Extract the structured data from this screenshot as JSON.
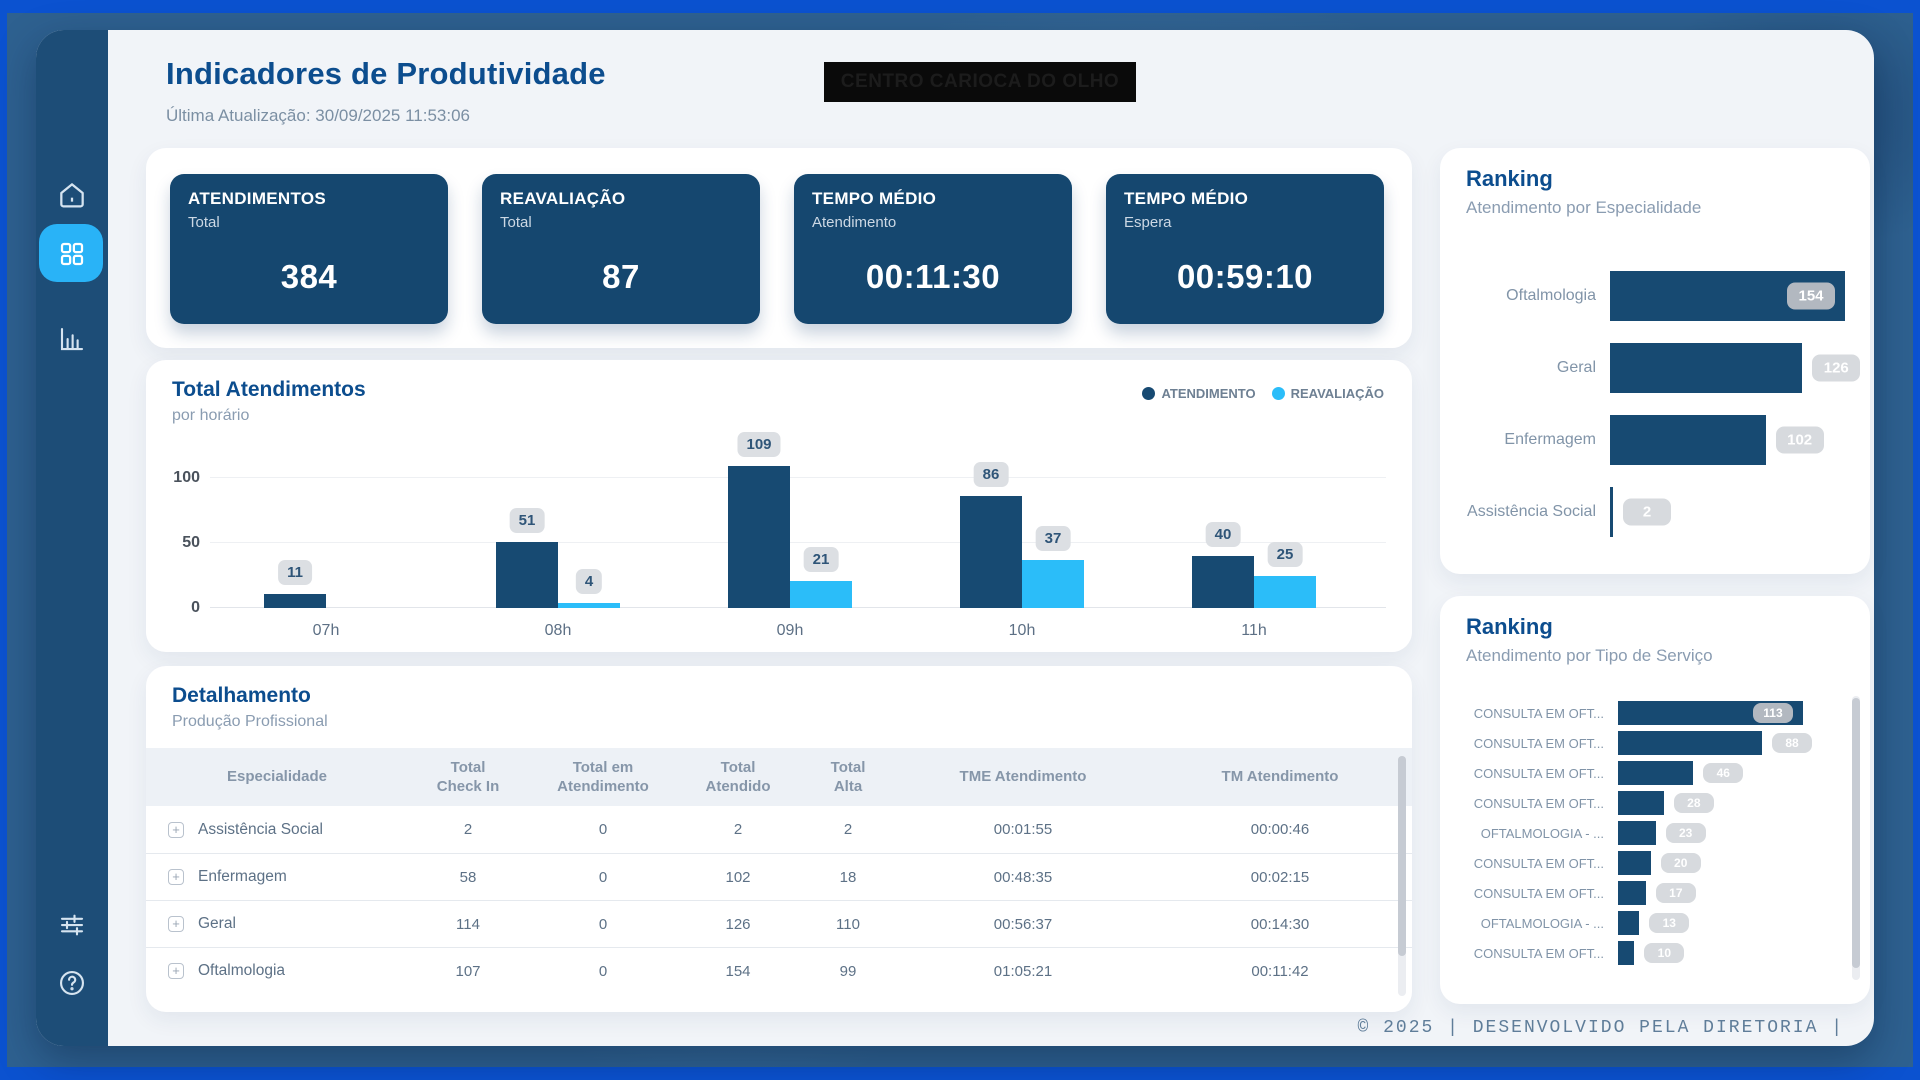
{
  "window": {
    "frame_color": "#0b52d0",
    "background_color": "#2e6190",
    "accent_color": "#29b3f7"
  },
  "sidebar": {
    "items": [
      {
        "id": "home",
        "icon": "home-icon",
        "active": false
      },
      {
        "id": "dashboard",
        "icon": "dashboard-grid-icon",
        "active": true
      },
      {
        "id": "reports",
        "icon": "bar-chart-icon",
        "active": false
      }
    ],
    "bottom_items": [
      {
        "id": "filters",
        "icon": "sliders-icon"
      },
      {
        "id": "help",
        "icon": "help-icon"
      }
    ]
  },
  "header": {
    "title": "Indicadores de Produtividade",
    "last_update": "Última Atualização: 30/09/2025 11:53:06",
    "redacted_text": "CENTRO CARIOCA DO OLHO"
  },
  "kpis": [
    {
      "title": "ATENDIMENTOS",
      "subtitle": "Total",
      "value": "384"
    },
    {
      "title": "REAVALIAÇÃO",
      "subtitle": "Total",
      "value": "87"
    },
    {
      "title": "TEMPO MÉDIO",
      "subtitle": "Atendimento",
      "value": "00:11:30"
    },
    {
      "title": "TEMPO MÉDIO",
      "subtitle": "Espera",
      "value": "00:59:10"
    }
  ],
  "chart_data": [
    {
      "type": "bar",
      "title": "Total Atendimentos",
      "subtitle": "por horário",
      "categories": [
        "07h",
        "08h",
        "09h",
        "10h",
        "11h"
      ],
      "series": [
        {
          "name": "ATENDIMENTO",
          "color": "#174a72",
          "values": [
            11,
            51,
            109,
            86,
            40
          ]
        },
        {
          "name": "REAVALIAÇÃO",
          "color": "#2bbdf9",
          "values": [
            0,
            4,
            21,
            37,
            25
          ]
        }
      ],
      "ylim": [
        0,
        130
      ],
      "yticks": [
        0,
        50,
        100
      ],
      "grid": true,
      "legend_position": "top-right",
      "value_labels": true
    },
    {
      "type": "bar",
      "orientation": "horizontal",
      "title": "Ranking",
      "subtitle": "Atendimento por Especialidade",
      "categories": [
        "Oftalmologia",
        "Geral",
        "Enfermagem",
        "Assistência Social"
      ],
      "values": [
        154,
        126,
        102,
        2
      ],
      "bar_color": "#174a72",
      "value_labels": true
    },
    {
      "type": "bar",
      "orientation": "horizontal",
      "title": "Ranking",
      "subtitle": "Atendimento por Tipo de Serviço",
      "categories": [
        "CONSULTA EM OFT...",
        "CONSULTA EM OFT...",
        "CONSULTA EM OFT...",
        "CONSULTA EM OFT...",
        "OFTALMOLOGIA - ...",
        "CONSULTA EM OFT...",
        "CONSULTA EM OFT...",
        "OFTALMOLOGIA - ...",
        "CONSULTA EM OFT..."
      ],
      "values": [
        113,
        88,
        46,
        28,
        23,
        20,
        17,
        13,
        10
      ],
      "bar_color": "#174a72",
      "value_labels": true,
      "scrollable": true
    }
  ],
  "table": {
    "title": "Detalhamento",
    "subtitle": "Produção Profissional",
    "columns": [
      "Especialidade",
      "Total\nCheck In",
      "Total em\nAtendimento",
      "Total\nAtendido",
      "Total\nAlta",
      "TME Atendimento",
      "TM Atendimento"
    ],
    "rows": [
      [
        "Assistência Social",
        "2",
        "0",
        "2",
        "2",
        "00:01:55",
        "00:00:46"
      ],
      [
        "Enfermagem",
        "58",
        "0",
        "102",
        "18",
        "00:48:35",
        "00:02:15"
      ],
      [
        "Geral",
        "114",
        "0",
        "126",
        "110",
        "00:56:37",
        "00:14:30"
      ],
      [
        "Oftalmologia",
        "107",
        "0",
        "154",
        "99",
        "01:05:21",
        "00:11:42"
      ]
    ]
  },
  "footer": {
    "text": "© 2025 | DESENVOLVIDO PELA DIRETORIA |"
  }
}
